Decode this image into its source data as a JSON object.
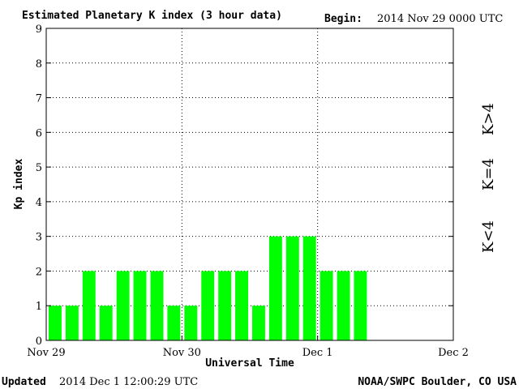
{
  "header": {
    "title": "Estimated Planetary K index (3 hour data)",
    "begin_label": "Begin:",
    "begin_value": "2014 Nov 29 0000 UTC"
  },
  "footer": {
    "updated_label": "Updated",
    "updated_value": "2014 Dec  1 12:00:29 UTC",
    "source": "NOAA/SWPC Boulder, CO USA"
  },
  "legend": {
    "high": {
      "label": "K>4",
      "color": "#ff2a00"
    },
    "equal": {
      "label": "K=4",
      "color": "#ffd700"
    },
    "low": {
      "label": "K<4",
      "color": "#22ee22"
    }
  },
  "chart_data": {
    "type": "bar",
    "title": "Estimated Planetary K index (3 hour data)",
    "xlabel": "Universal Time",
    "ylabel": "Kp index",
    "ylim": [
      0,
      9
    ],
    "y_ticks": [
      "0",
      "1",
      "2",
      "3",
      "4",
      "5",
      "6",
      "7",
      "8",
      "9"
    ],
    "x_ticks": [
      "Nov 29",
      "Nov 30",
      "Dec 1",
      "Dec 2"
    ],
    "grid": true,
    "bar_color": "#00ff00",
    "values": [
      1,
      1,
      2,
      1,
      2,
      2,
      2,
      1,
      1,
      2,
      2,
      2,
      1,
      3,
      3,
      3,
      2,
      2,
      2
    ]
  }
}
